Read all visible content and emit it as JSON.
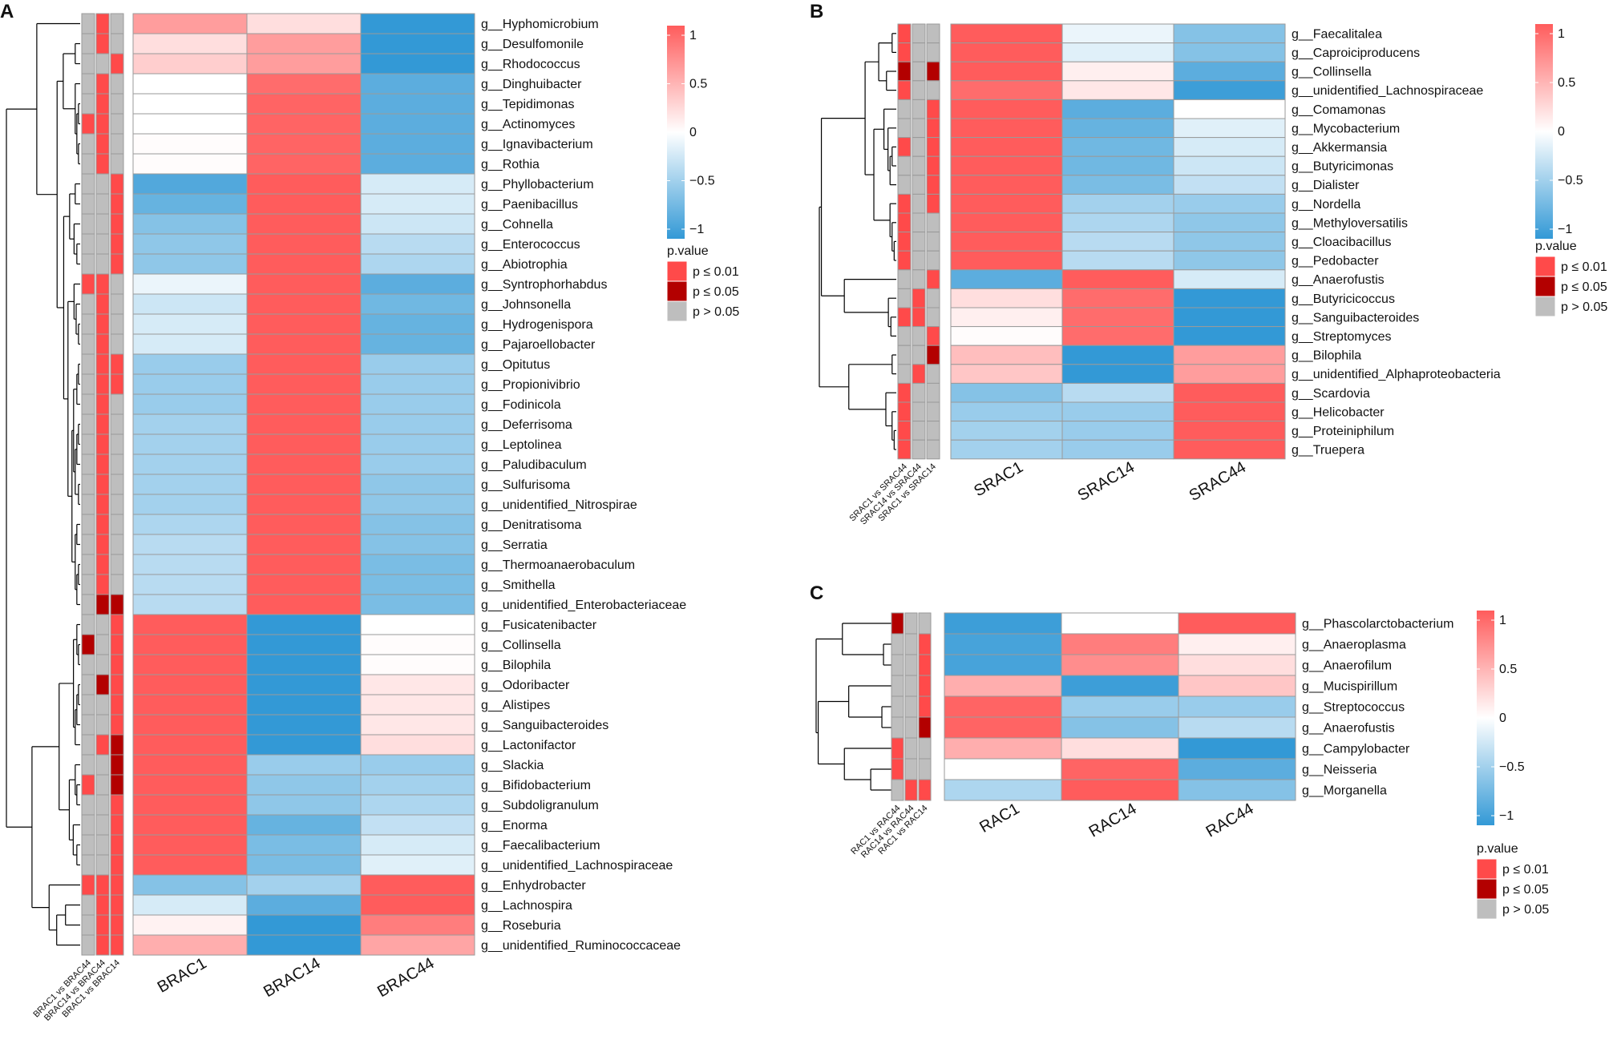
{
  "figure": {
    "colors": {
      "low": "#3399d6",
      "mid": "#ffffff",
      "high": "#ff5c5c",
      "p001": "#ff4a4a",
      "p005": "#b30000",
      "pns": "#bebebe",
      "grid": "#9a9a9a"
    }
  },
  "chart_data": [
    {
      "panel": "A",
      "type": "heatmap",
      "columns": [
        "BRAC1",
        "BRAC14",
        "BRAC44"
      ],
      "annotation_columns": [
        "BRAC1 vs BRAC44",
        "BRAC14 vs BRAC44",
        "BRAC1 vs BRAC14"
      ],
      "rows": [
        "g__Hyphomicrobium",
        "g__Desulfomonile",
        "g__Rhodococcus",
        "g__Dinghuibacter",
        "g__Tepidimonas",
        "g__Actinomyces",
        "g__Ignavibacterium",
        "g__Rothia",
        "g__Phyllobacterium",
        "g__Paenibacillus",
        "g__Cohnella",
        "g__Enterococcus",
        "g__Abiotrophia",
        "g__Syntrophorhabdus",
        "g__Johnsonella",
        "g__Hydrogenispora",
        "g__Pajaroellobacter",
        "g__Opitutus",
        "g__Propionivibrio",
        "g__Fodinicola",
        "g__Deferrisoma",
        "g__Leptolinea",
        "g__Paludibaculum",
        "g__Sulfurisoma",
        "g__unidentified_Nitrospirae",
        "g__Denitratisoma",
        "g__Serratia",
        "g__Thermoanaerobaculum",
        "g__Smithella",
        "g__unidentified_Enterobacteriaceae",
        "g__Fusicatenibacter",
        "g__Collinsella",
        "g__Bilophila",
        "g__Odoribacter",
        "g__Alistipes",
        "g__Sanguibacteroides",
        "g__Lactonifactor",
        "g__Slackia",
        "g__Bifidobacterium",
        "g__Subdoligranulum",
        "g__Enorma",
        "g__Faecalibacterium",
        "g__unidentified_Lachnospiraceae",
        "g__Enhydrobacter",
        "g__Lachnospira",
        "g__Roseburia",
        "g__unidentified_Ruminococcaceae"
      ],
      "values": [
        [
          0.6,
          0.2,
          -1.0
        ],
        [
          0.2,
          0.6,
          -1.0
        ],
        [
          0.3,
          0.6,
          -1.0
        ],
        [
          0.0,
          0.9,
          -0.8
        ],
        [
          0.0,
          0.95,
          -0.8
        ],
        [
          0.0,
          0.95,
          -0.8
        ],
        [
          0.02,
          0.95,
          -0.8
        ],
        [
          0.02,
          0.95,
          -0.8
        ],
        [
          -0.85,
          1.0,
          -0.2
        ],
        [
          -0.75,
          1.0,
          -0.2
        ],
        [
          -0.6,
          1.0,
          -0.25
        ],
        [
          -0.55,
          1.0,
          -0.35
        ],
        [
          -0.55,
          1.0,
          -0.4
        ],
        [
          -0.1,
          1.0,
          -0.8
        ],
        [
          -0.25,
          1.0,
          -0.7
        ],
        [
          -0.2,
          1.0,
          -0.75
        ],
        [
          -0.2,
          1.0,
          -0.75
        ],
        [
          -0.5,
          1.0,
          -0.5
        ],
        [
          -0.5,
          1.0,
          -0.5
        ],
        [
          -0.5,
          1.0,
          -0.5
        ],
        [
          -0.45,
          1.0,
          -0.5
        ],
        [
          -0.45,
          1.0,
          -0.5
        ],
        [
          -0.45,
          1.0,
          -0.5
        ],
        [
          -0.45,
          1.0,
          -0.55
        ],
        [
          -0.45,
          1.0,
          -0.55
        ],
        [
          -0.4,
          1.0,
          -0.6
        ],
        [
          -0.35,
          1.0,
          -0.6
        ],
        [
          -0.35,
          1.0,
          -0.65
        ],
        [
          -0.35,
          1.0,
          -0.65
        ],
        [
          -0.35,
          1.0,
          -0.65
        ],
        [
          1.0,
          -1.0,
          0.0
        ],
        [
          1.0,
          -1.0,
          0.02
        ],
        [
          1.0,
          -1.0,
          0.02
        ],
        [
          1.0,
          -1.0,
          0.15
        ],
        [
          1.0,
          -1.0,
          0.15
        ],
        [
          1.0,
          -1.0,
          0.15
        ],
        [
          1.0,
          -1.0,
          0.2
        ],
        [
          1.0,
          -0.5,
          -0.5
        ],
        [
          1.0,
          -0.55,
          -0.45
        ],
        [
          1.0,
          -0.55,
          -0.4
        ],
        [
          1.0,
          -0.75,
          -0.3
        ],
        [
          1.0,
          -0.65,
          -0.2
        ],
        [
          1.0,
          -0.65,
          -0.15
        ],
        [
          -0.6,
          -0.45,
          1.0
        ],
        [
          -0.2,
          -0.8,
          1.0
        ],
        [
          0.08,
          -1.0,
          0.8
        ],
        [
          0.5,
          -1.0,
          0.55
        ]
      ],
      "annotations": [
        [
          0,
          2,
          0
        ],
        [
          0,
          2,
          0
        ],
        [
          0,
          0,
          2
        ],
        [
          0,
          2,
          0
        ],
        [
          0,
          2,
          0
        ],
        [
          2,
          2,
          0
        ],
        [
          0,
          2,
          0
        ],
        [
          0,
          2,
          0
        ],
        [
          0,
          0,
          2
        ],
        [
          0,
          0,
          2
        ],
        [
          0,
          0,
          2
        ],
        [
          0,
          0,
          2
        ],
        [
          0,
          0,
          2
        ],
        [
          2,
          2,
          0
        ],
        [
          0,
          2,
          0
        ],
        [
          0,
          2,
          0
        ],
        [
          0,
          2,
          0
        ],
        [
          0,
          2,
          2
        ],
        [
          0,
          2,
          2
        ],
        [
          0,
          2,
          0
        ],
        [
          0,
          2,
          0
        ],
        [
          0,
          2,
          0
        ],
        [
          0,
          2,
          0
        ],
        [
          0,
          2,
          0
        ],
        [
          0,
          2,
          0
        ],
        [
          0,
          2,
          0
        ],
        [
          0,
          2,
          0
        ],
        [
          0,
          2,
          0
        ],
        [
          0,
          2,
          0
        ],
        [
          0,
          1,
          1
        ],
        [
          0,
          0,
          2
        ],
        [
          1,
          0,
          2
        ],
        [
          0,
          0,
          2
        ],
        [
          0,
          1,
          2
        ],
        [
          0,
          0,
          2
        ],
        [
          0,
          0,
          2
        ],
        [
          0,
          2,
          1
        ],
        [
          0,
          0,
          1
        ],
        [
          2,
          0,
          1
        ],
        [
          0,
          0,
          2
        ],
        [
          0,
          0,
          2
        ],
        [
          0,
          0,
          2
        ],
        [
          0,
          0,
          2
        ],
        [
          2,
          2,
          2
        ],
        [
          0,
          2,
          2
        ],
        [
          0,
          2,
          2
        ],
        [
          0,
          2,
          2
        ]
      ],
      "legend_ticks": [
        "1",
        "0.5",
        "0",
        "−0.5",
        "−1"
      ],
      "legend_title": "p.value",
      "legend_labels": [
        "p ≤ 0.01",
        "p ≤ 0.05",
        "p > 0.05"
      ]
    },
    {
      "panel": "B",
      "type": "heatmap",
      "columns": [
        "SRAC1",
        "SRAC14",
        "SRAC44"
      ],
      "annotation_columns": [
        "SRAC1 vs SRAC44",
        "SRAC14 vs SRAC44",
        "SRAC1 vs SRAC14"
      ],
      "rows": [
        "g__Faecalitalea",
        "g__Caproiciproducens",
        "g__Collinsella",
        "g__unidentified_Lachnospiraceae",
        "g__Comamonas",
        "g__Mycobacterium",
        "g__Akkermansia",
        "g__Butyricimonas",
        "g__Dialister",
        "g__Nordella",
        "g__Methyloversatilis",
        "g__Cloacibacillus",
        "g__Pedobacter",
        "g__Anaerofustis",
        "g__Butyricicoccus",
        "g__Sanguibacteroides",
        "g__Streptomyces",
        "g__Bilophila",
        "g__unidentified_Alphaproteobacteria",
        "g__Scardovia",
        "g__Helicobacter",
        "g__Proteiniphilum",
        "g__Truepera"
      ],
      "values": [
        [
          1.0,
          -0.1,
          -0.6
        ],
        [
          1.0,
          -0.15,
          -0.6
        ],
        [
          1.0,
          0.1,
          -0.8
        ],
        [
          0.9,
          0.15,
          -0.95
        ],
        [
          1.0,
          -0.8,
          0.0
        ],
        [
          1.0,
          -0.75,
          -0.15
        ],
        [
          1.0,
          -0.7,
          -0.2
        ],
        [
          1.0,
          -0.7,
          -0.25
        ],
        [
          1.0,
          -0.65,
          -0.3
        ],
        [
          1.0,
          -0.45,
          -0.5
        ],
        [
          1.0,
          -0.4,
          -0.55
        ],
        [
          1.0,
          -0.35,
          -0.55
        ],
        [
          1.0,
          -0.35,
          -0.55
        ],
        [
          -0.8,
          1.0,
          -0.2
        ],
        [
          0.2,
          0.9,
          -1.0
        ],
        [
          0.1,
          0.9,
          -1.0
        ],
        [
          0.02,
          0.9,
          -1.0
        ],
        [
          0.4,
          -1.0,
          0.6
        ],
        [
          0.35,
          -1.0,
          0.6
        ],
        [
          -0.6,
          -0.35,
          1.0
        ],
        [
          -0.5,
          -0.5,
          1.0
        ],
        [
          -0.45,
          -0.5,
          1.0
        ],
        [
          -0.45,
          -0.5,
          1.0
        ]
      ],
      "annotations": [
        [
          2,
          0,
          0
        ],
        [
          2,
          0,
          0
        ],
        [
          1,
          0,
          1
        ],
        [
          2,
          0,
          0
        ],
        [
          0,
          0,
          2
        ],
        [
          0,
          0,
          2
        ],
        [
          2,
          0,
          2
        ],
        [
          0,
          0,
          2
        ],
        [
          0,
          0,
          2
        ],
        [
          2,
          0,
          2
        ],
        [
          2,
          0,
          0
        ],
        [
          2,
          0,
          0
        ],
        [
          2,
          0,
          0
        ],
        [
          0,
          0,
          2
        ],
        [
          0,
          2,
          0
        ],
        [
          2,
          2,
          0
        ],
        [
          0,
          0,
          2
        ],
        [
          0,
          0,
          1
        ],
        [
          0,
          2,
          0
        ],
        [
          2,
          0,
          0
        ],
        [
          2,
          0,
          0
        ],
        [
          2,
          0,
          0
        ],
        [
          2,
          0,
          0
        ]
      ],
      "legend_ticks": [
        "1",
        "0.5",
        "0",
        "−0.5",
        "−1"
      ],
      "legend_title": "p.value",
      "legend_labels": [
        "p ≤ 0.01",
        "p ≤ 0.05",
        "p > 0.05"
      ]
    },
    {
      "panel": "C",
      "type": "heatmap",
      "columns": [
        "RAC1",
        "RAC14",
        "RAC44"
      ],
      "annotation_columns": [
        "RAC1 vs RAC44",
        "RAC14 vs RAC44",
        "RAC1 vs RAC14"
      ],
      "rows": [
        "g__Phascolarctobacterium",
        "g__Anaeroplasma",
        "g__Anaerofilum",
        "g__Mucispirillum",
        "g__Streptococcus",
        "g__Anaerofustis",
        "g__Campylobacter",
        "g__Neisseria",
        "g__Morganella"
      ],
      "values": [
        [
          -0.95,
          0.0,
          1.0
        ],
        [
          -0.9,
          0.8,
          0.1
        ],
        [
          -0.9,
          0.7,
          0.2
        ],
        [
          0.5,
          -0.95,
          0.35
        ],
        [
          0.95,
          -0.5,
          -0.5
        ],
        [
          0.95,
          -0.6,
          -0.35
        ],
        [
          0.5,
          0.2,
          -1.0
        ],
        [
          0.0,
          0.95,
          -0.8
        ],
        [
          -0.4,
          1.0,
          -0.6
        ]
      ],
      "annotations": [
        [
          1,
          0,
          0
        ],
        [
          0,
          0,
          2
        ],
        [
          0,
          0,
          2
        ],
        [
          0,
          0,
          2
        ],
        [
          0,
          0,
          2
        ],
        [
          0,
          0,
          1
        ],
        [
          2,
          0,
          0
        ],
        [
          2,
          0,
          0
        ],
        [
          0,
          2,
          2
        ]
      ],
      "legend_ticks": [
        "1",
        "0.5",
        "0",
        "−0.5",
        "−1"
      ],
      "legend_title": "p.value",
      "legend_labels": [
        "p ≤ 0.01",
        "p ≤ 0.05",
        "p > 0.05"
      ]
    }
  ]
}
